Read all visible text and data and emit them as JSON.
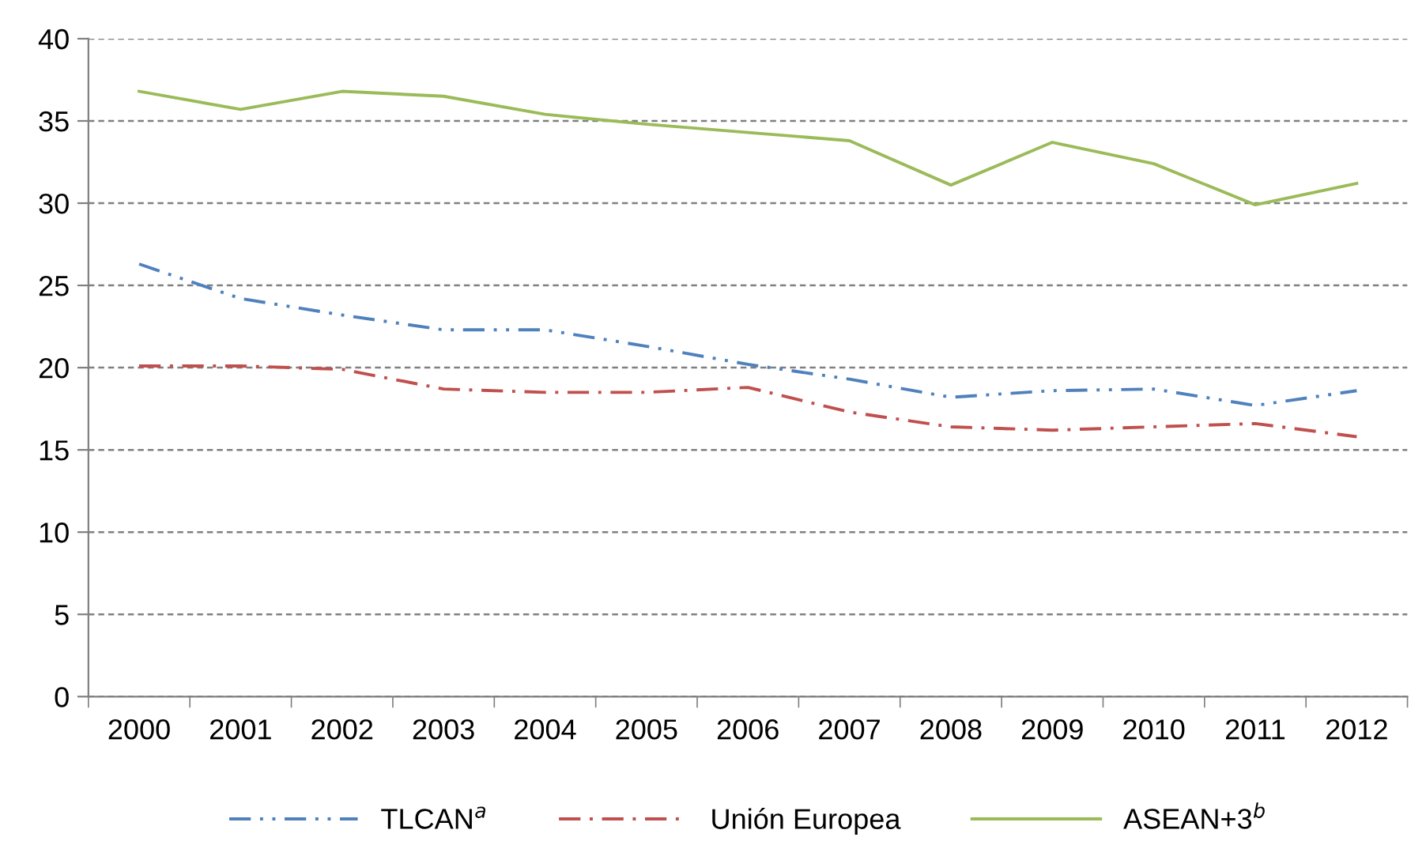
{
  "chart_data": {
    "type": "line",
    "categories": [
      "2000",
      "2001",
      "2002",
      "2003",
      "2004",
      "2005",
      "2006",
      "2007",
      "2008",
      "2009",
      "2010",
      "2011",
      "2012"
    ],
    "series": [
      {
        "name": "TLCAN$^{a}$",
        "color": "#4f81bd",
        "line_style": "dashdotdot",
        "values": [
          26.3,
          24.2,
          23.2,
          22.3,
          22.3,
          21.3,
          20.2,
          19.3,
          18.2,
          18.6,
          18.7,
          17.7,
          18.6
        ]
      },
      {
        "name": "Unión Europea",
        "color": "#c0504d",
        "line_style": "dashdot",
        "values": [
          20.1,
          20.1,
          19.9,
          18.7,
          18.5,
          18.5,
          18.8,
          17.3,
          16.4,
          16.2,
          16.4,
          16.6,
          15.8
        ]
      },
      {
        "name": "ASEAN+3$^{b}$",
        "color": "#9bbb59",
        "line_style": "solid",
        "values": [
          36.8,
          35.7,
          36.8,
          36.5,
          35.4,
          34.8,
          34.3,
          33.8,
          31.1,
          33.7,
          32.4,
          29.9,
          31.2
        ]
      }
    ],
    "ylim": [
      0,
      40
    ],
    "yticks": [
      0,
      5,
      10,
      15,
      20,
      25,
      30,
      35,
      40
    ],
    "grid": "y",
    "legend": "bottom",
    "marker": "none"
  }
}
